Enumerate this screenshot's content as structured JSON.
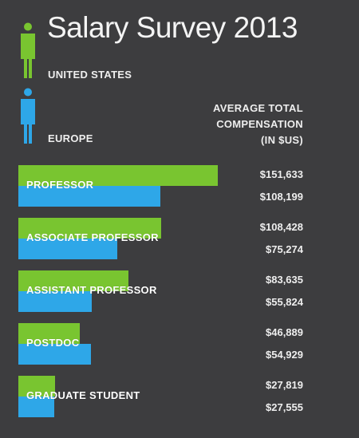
{
  "title": "Salary Survey 2013",
  "legend": {
    "us_label": "UNITED STATES",
    "eu_label": "EUROPE",
    "us_color": "#79c530",
    "eu_color": "#2ea7e8",
    "us_icon": "person-icon",
    "eu_icon": "person-icon"
  },
  "column_header": [
    "AVERAGE TOTAL",
    "COMPENSATION",
    "(IN $US)"
  ],
  "chart_data": {
    "type": "bar",
    "orientation": "horizontal",
    "title": "Salary Survey 2013",
    "categories": [
      "PROFESSOR",
      "ASSOCIATE PROFESSOR",
      "ASSISTANT PROFESSOR",
      "POSTDOC",
      "GRADUATE STUDENT"
    ],
    "series": [
      {
        "name": "UNITED STATES",
        "color": "#79c530",
        "values": [
          151633,
          108428,
          83635,
          46889,
          27819
        ],
        "labels": [
          "$151,633",
          "$108,428",
          "$83,635",
          "$46,889",
          "$27,819"
        ]
      },
      {
        "name": "EUROPE",
        "color": "#2ea7e8",
        "values": [
          108199,
          75274,
          55824,
          54929,
          27555
        ],
        "labels": [
          "$108,199",
          "$75,274",
          "$55,824",
          "$54,929",
          "$27,555"
        ]
      }
    ],
    "legend_position": "top-left",
    "grid": false
  }
}
